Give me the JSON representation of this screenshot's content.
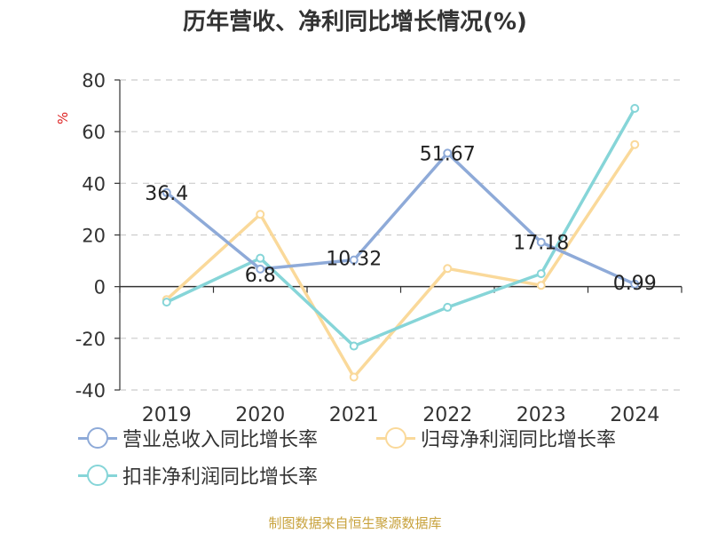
{
  "title": "历年营收、净利同比增长情况(%)",
  "source": "制图数据来自恒生聚源数据库",
  "chart_data": {
    "type": "line",
    "title": "历年营收、净利同比增长情况(%)",
    "ylabel": "%",
    "xlabel": "",
    "ylim": [
      -40,
      80
    ],
    "yticks": [
      -40,
      -20,
      0,
      20,
      40,
      60,
      80
    ],
    "grid": true,
    "legend_position": "bottom",
    "categories": [
      "2019",
      "2020",
      "2021",
      "2022",
      "2023",
      "2024"
    ],
    "series": [
      {
        "name": "营业总收入同比增长率",
        "color": "#8eaad8",
        "values": [
          36.4,
          6.8,
          10.32,
          51.67,
          17.18,
          0.99
        ],
        "labels": [
          "36.4",
          "6.8",
          "10.32",
          "51.67",
          "17.18",
          "0.99"
        ]
      },
      {
        "name": "归母净利润同比增长率",
        "color": "#fad99a",
        "values": [
          -5,
          28,
          -35,
          7,
          0.5,
          55
        ]
      },
      {
        "name": "扣非净利润同比增长率",
        "color": "#86d5d8",
        "values": [
          -6,
          11,
          -23,
          -8,
          5,
          69
        ]
      }
    ]
  }
}
